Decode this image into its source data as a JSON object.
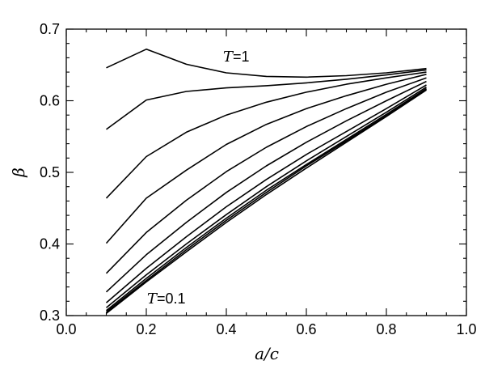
{
  "chart_data": {
    "type": "line",
    "xlabel": "a/c",
    "ylabel": "β",
    "xlim": [
      0.0,
      1.0
    ],
    "ylim": [
      0.3,
      0.7
    ],
    "xticks": [
      "0.0",
      "0.2",
      "0.4",
      "0.6",
      "0.8",
      "1.0"
    ],
    "yticks": [
      "0.3",
      "0.4",
      "0.5",
      "0.6",
      "0.7"
    ],
    "grid": false,
    "x": [
      0.1,
      0.2,
      0.3,
      0.4,
      0.5,
      0.6,
      0.7,
      0.8,
      0.9
    ],
    "series": [
      {
        "values": [
          0.646,
          0.672,
          0.651,
          0.639,
          0.634,
          0.633,
          0.635,
          0.639,
          0.645
        ]
      },
      {
        "values": [
          0.56,
          0.601,
          0.613,
          0.618,
          0.621,
          0.625,
          0.63,
          0.636,
          0.643
        ]
      },
      {
        "values": [
          0.464,
          0.522,
          0.556,
          0.58,
          0.598,
          0.612,
          0.623,
          0.632,
          0.64
        ]
      },
      {
        "values": [
          0.401,
          0.464,
          0.503,
          0.539,
          0.567,
          0.589,
          0.607,
          0.623,
          0.637
        ]
      },
      {
        "values": [
          0.359,
          0.416,
          0.461,
          0.501,
          0.535,
          0.564,
          0.589,
          0.612,
          0.632
        ]
      },
      {
        "values": [
          0.333,
          0.385,
          0.43,
          0.472,
          0.509,
          0.542,
          0.572,
          0.6,
          0.627
        ]
      },
      {
        "values": [
          0.318,
          0.366,
          0.41,
          0.452,
          0.49,
          0.525,
          0.557,
          0.589,
          0.622
        ]
      },
      {
        "values": [
          0.311,
          0.357,
          0.4,
          0.441,
          0.48,
          0.516,
          0.55,
          0.584,
          0.619
        ]
      },
      {
        "values": [
          0.307,
          0.352,
          0.395,
          0.436,
          0.475,
          0.511,
          0.546,
          0.581,
          0.617
        ]
      },
      {
        "values": [
          0.305,
          0.349,
          0.392,
          0.433,
          0.472,
          0.509,
          0.544,
          0.579,
          0.616
        ]
      },
      {
        "values": [
          0.303,
          0.347,
          0.389,
          0.43,
          0.469,
          0.506,
          0.542,
          0.578,
          0.615
        ]
      }
    ],
    "annotations": [
      {
        "series": "top",
        "var": "T",
        "text": "=1"
      },
      {
        "series": "bottom",
        "var": "T",
        "text": "=0.1"
      }
    ]
  }
}
